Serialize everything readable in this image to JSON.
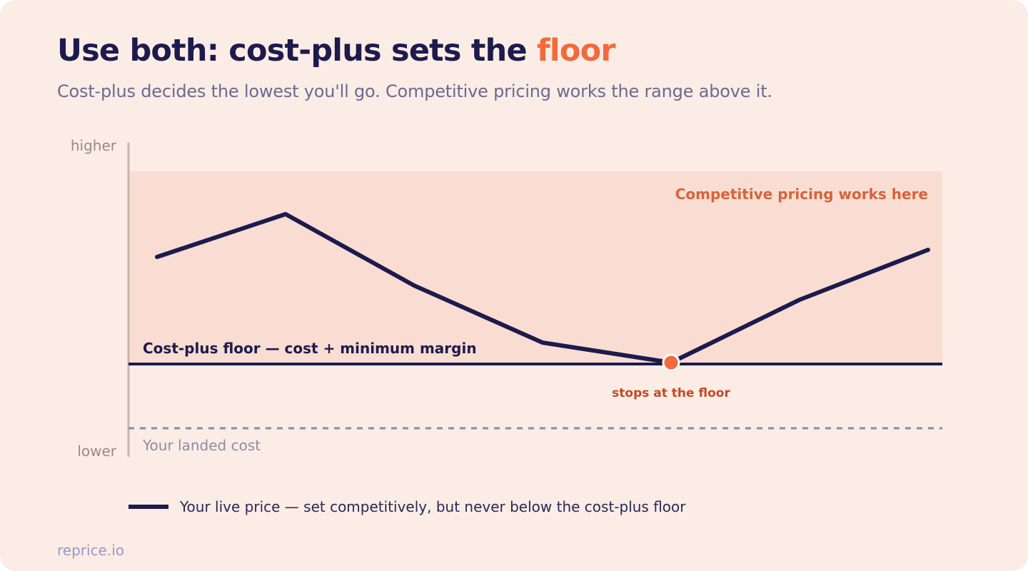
{
  "header": {
    "title_prefix": "Use both: cost-plus sets the ",
    "title_accent": "floor",
    "subtitle": "Cost-plus decides the lowest you'll go. Competitive pricing works the range above it."
  },
  "axis": {
    "top_label": "higher",
    "bottom_label": "lower"
  },
  "zone": {
    "label": "Competitive pricing works here"
  },
  "floor": {
    "label": "Cost-plus floor — cost + minimum margin"
  },
  "landed_cost": {
    "label": "Your landed cost"
  },
  "live_price": {
    "floor_marker_index": 4,
    "floor_marker_label": "stops at the floor"
  },
  "legend": {
    "label": "Your live price — set competitively, but never below the cost-plus floor"
  },
  "footer": {
    "brand": "reprice.io"
  },
  "colors": {
    "navy": "#1d1b4c",
    "accent": "#f26a3c",
    "zone_fill": "#f9ddd2",
    "zone_label": "#d4643c",
    "marker_label": "#c24a26",
    "axis_line": "#c7b6b0",
    "dashed": "#8c8aaa",
    "muted": "#8d8cab"
  }
}
